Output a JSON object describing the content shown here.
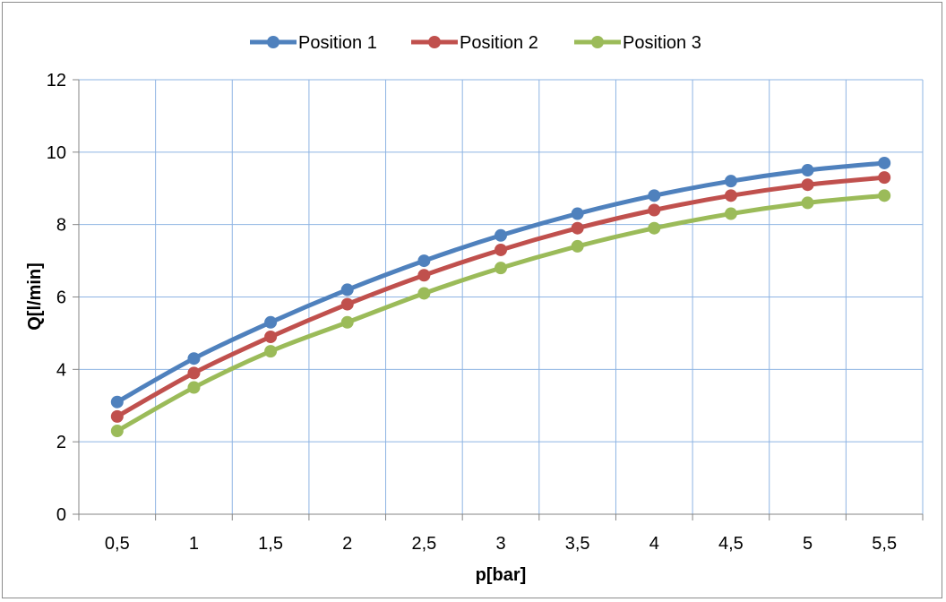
{
  "chart_data": {
    "type": "line",
    "title": "",
    "xlabel": "p[bar]",
    "ylabel": "Q[l/min]",
    "categories": [
      "0,5",
      "1",
      "1,5",
      "2",
      "2,5",
      "3",
      "3,5",
      "4",
      "4,5",
      "5",
      "5,5"
    ],
    "ylim": [
      0,
      12
    ],
    "yticks": [
      "0",
      "2",
      "4",
      "6",
      "8",
      "10",
      "12"
    ],
    "grid": true,
    "legend_position": "top",
    "series": [
      {
        "name": "Position 1",
        "color": "#4f81bd",
        "values": [
          3.1,
          4.3,
          5.3,
          6.2,
          7.0,
          7.7,
          8.3,
          8.8,
          9.2,
          9.5,
          9.7
        ]
      },
      {
        "name": "Position 2",
        "color": "#c0504d",
        "values": [
          2.7,
          3.9,
          4.9,
          5.8,
          6.6,
          7.3,
          7.9,
          8.4,
          8.8,
          9.1,
          9.3
        ]
      },
      {
        "name": "Position 3",
        "color": "#9bbb59",
        "values": [
          2.3,
          3.5,
          4.5,
          5.3,
          6.1,
          6.8,
          7.4,
          7.9,
          8.3,
          8.6,
          8.8
        ]
      }
    ]
  }
}
